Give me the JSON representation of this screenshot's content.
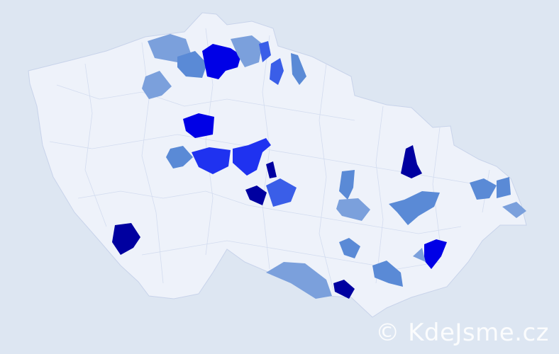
{
  "map": {
    "background_color": "#dde6f2",
    "land_color": "#eef2fa",
    "border_color": "#c8d3ea",
    "scale_colors": [
      "#aabbe0",
      "#7ba0dc",
      "#5a8ad6",
      "#3a5ee8",
      "#1f32f0",
      "#0000e6",
      "#0000a0"
    ],
    "highlighted_regions": [
      {
        "level": 1
      },
      {
        "level": 2
      },
      {
        "level": 5
      },
      {
        "level": 1
      },
      {
        "level": 3
      },
      {
        "level": 3
      },
      {
        "level": 2
      },
      {
        "level": 1
      },
      {
        "level": 5
      },
      {
        "level": 2
      },
      {
        "level": 4
      },
      {
        "level": 4
      },
      {
        "level": 6
      },
      {
        "level": 3
      },
      {
        "level": 6
      },
      {
        "level": 2
      },
      {
        "level": 1
      },
      {
        "level": 6
      },
      {
        "level": 2
      },
      {
        "level": 2
      },
      {
        "level": 2
      },
      {
        "level": 1
      },
      {
        "level": 2
      },
      {
        "level": 5
      },
      {
        "level": 1
      },
      {
        "level": 2
      },
      {
        "level": 6
      }
    ]
  },
  "watermark": "© KdeJsme.cz"
}
